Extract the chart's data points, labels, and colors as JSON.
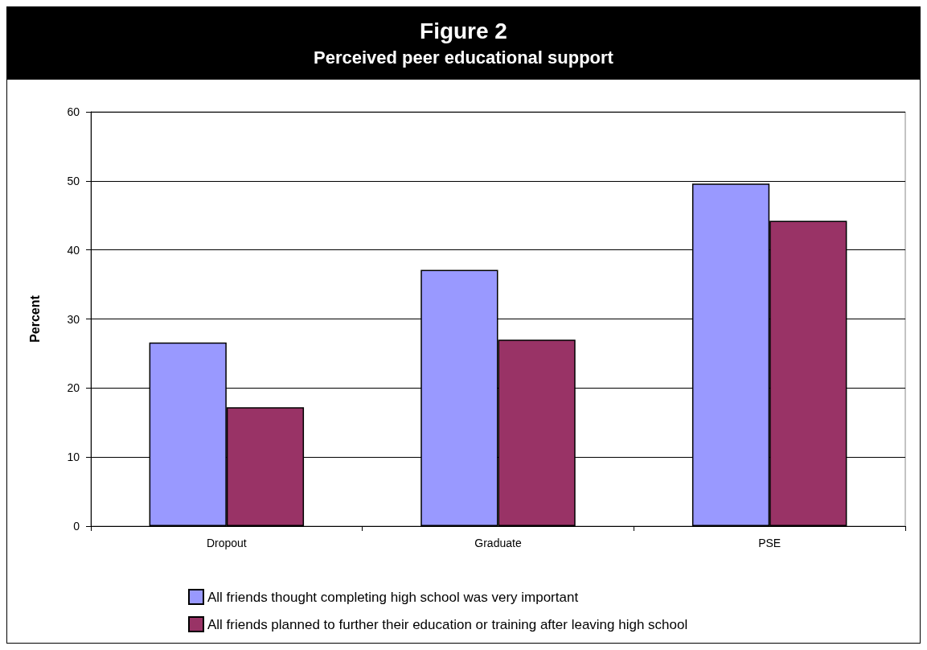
{
  "chart_data": {
    "type": "bar",
    "title": "Figure 2",
    "subtitle": "Perceived peer educational support",
    "ylabel": "Percent",
    "categories": [
      "Dropout",
      "Graduate",
      "PSE"
    ],
    "series": [
      {
        "name": "All friends thought completing high school was very important",
        "color": "#9999ff",
        "values": [
          26.6,
          37.1,
          49.6
        ]
      },
      {
        "name": "All friends planned to further their education or training after leaving high school",
        "color": "#993366",
        "values": [
          17.2,
          27.0,
          44.2
        ]
      }
    ],
    "ylim": [
      0,
      60
    ],
    "yticks": [
      0,
      10,
      20,
      30,
      40,
      50,
      60
    ],
    "grid": "y",
    "legend": "bottom"
  }
}
